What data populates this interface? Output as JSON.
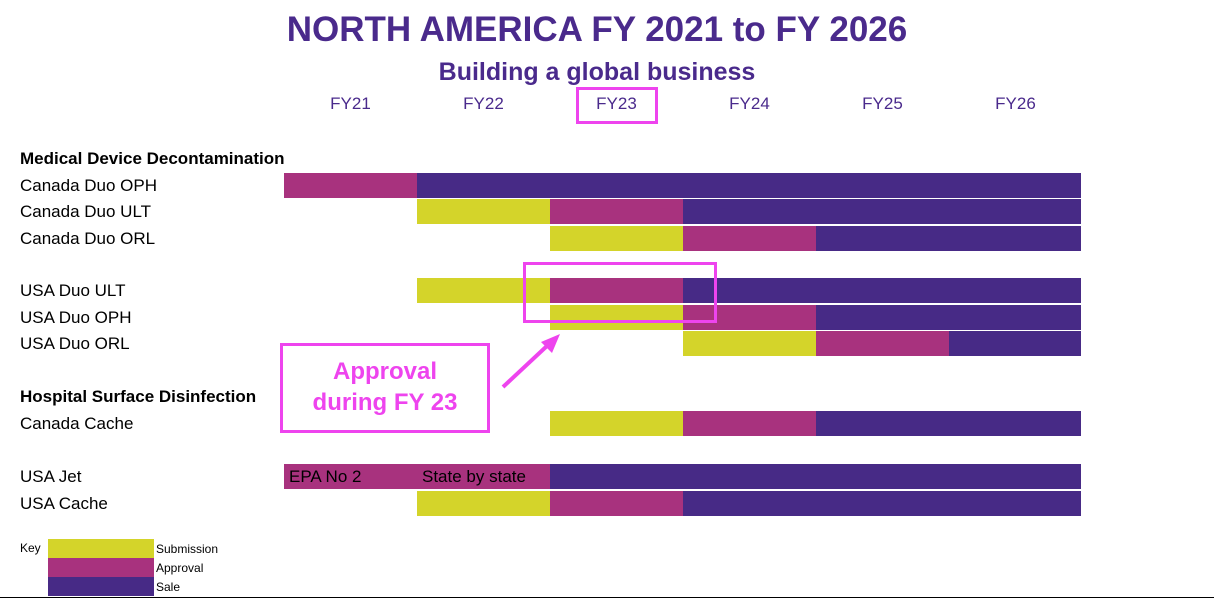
{
  "title": "NORTH AMERICA FY 2021 to FY 2026",
  "subtitle": "Building a global business",
  "colors": {
    "Submission": "#d4d42a",
    "Approval": "#a8327e",
    "Sale": "#472a86"
  },
  "chart_data": {
    "type": "gantt",
    "title": "NORTH AMERICA FY 2021 to FY 2026",
    "subtitle": "Building a global business",
    "categories": [
      "FY21",
      "FY22",
      "FY23",
      "FY24",
      "FY25",
      "FY26"
    ],
    "highlighted_category": "FY23",
    "legend": {
      "label": "Key",
      "placement": "bottom-left",
      "entries": [
        "Submission",
        "Approval",
        "Sale"
      ]
    },
    "sections": [
      {
        "name": "Medical Device Decontamination",
        "rows": [
          {
            "label": "Canada Duo OPH",
            "cells": [
              "Approval",
              "Sale",
              "Sale",
              "Sale",
              "Sale",
              "Sale"
            ]
          },
          {
            "label": "Canada Duo ULT",
            "cells": [
              null,
              "Submission",
              "Approval",
              "Sale",
              "Sale",
              "Sale"
            ]
          },
          {
            "label": "Canada Duo ORL",
            "cells": [
              null,
              null,
              "Submission",
              "Approval",
              "Sale",
              "Sale"
            ]
          }
        ]
      },
      {
        "name": "",
        "rows": [
          {
            "label": "USA Duo ULT",
            "cells": [
              null,
              "Submission",
              "Approval",
              "Sale",
              "Sale",
              "Sale"
            ]
          },
          {
            "label": "USA Duo OPH",
            "cells": [
              null,
              null,
              "Submission",
              "Approval",
              "Sale",
              "Sale"
            ]
          },
          {
            "label": "USA Duo ORL",
            "cells": [
              null,
              null,
              null,
              "Submission",
              "Approval",
              "Sale"
            ]
          }
        ]
      },
      {
        "name": "Hospital Surface Disinfection",
        "rows": [
          {
            "label": "Canada Cache",
            "cells": [
              null,
              null,
              "Submission",
              "Approval",
              "Sale",
              "Sale"
            ]
          }
        ]
      },
      {
        "name": "",
        "rows": [
          {
            "label": "USA Jet",
            "cells": [
              "Approval",
              "Approval",
              "Sale",
              "Sale",
              "Sale",
              "Sale"
            ],
            "cell_text": [
              "EPA No 2",
              "State by state",
              "",
              "",
              "",
              ""
            ]
          },
          {
            "label": "USA Cache",
            "cells": [
              null,
              "Submission",
              "Approval",
              "Sale",
              "Sale",
              "Sale"
            ]
          }
        ]
      }
    ],
    "annotations": [
      {
        "text_lines": [
          "Approval",
          "during FY 23"
        ],
        "points_to": {
          "row": "USA Duo ULT",
          "category": "FY23"
        }
      }
    ]
  }
}
